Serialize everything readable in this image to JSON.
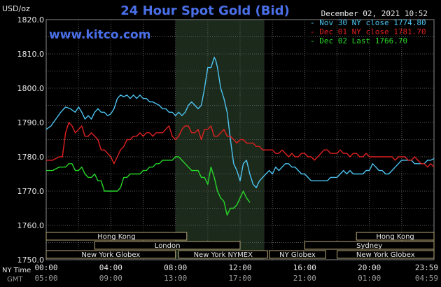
{
  "chart_data": {
    "type": "line",
    "title": "24 Hour Spot Gold (Bid)",
    "watermark": "www.kitco.com",
    "timestamp": "December 02, 2021 10:52",
    "y_unit_label": "USD/oz",
    "ylim": [
      1750,
      1820
    ],
    "y_ticks": [
      "1820.0",
      "1810.0",
      "1800.0",
      "1790.0",
      "1780.0",
      "1770.0",
      "1760.0",
      "1750.0"
    ],
    "x_tick_labels_ny": [
      "00:00",
      "04:00",
      "08:00",
      "12:00",
      "16:00",
      "20:00",
      "23:59"
    ],
    "x_tick_labels_gmt": [
      "05:00",
      "09:00",
      "13:00",
      "17:00",
      "21:00",
      "01:00",
      "04:59"
    ],
    "x_axis_row_labels": {
      "ny": "NY Time",
      "gmt": "GMT"
    },
    "grid": true,
    "legend_placement": "top-right",
    "shaded_region_hours": [
      8,
      13.5
    ],
    "series": [
      {
        "name": "Nov 30 NY close 1774.80",
        "color": "#4cc3f0",
        "points": [
          [
            0,
            1788
          ],
          [
            0.3,
            1789
          ],
          [
            0.6,
            1791
          ],
          [
            0.9,
            1793
          ],
          [
            1.2,
            1794.5
          ],
          [
            1.5,
            1794
          ],
          [
            1.8,
            1793
          ],
          [
            2.0,
            1794.5
          ],
          [
            2.2,
            1793
          ],
          [
            2.4,
            1791
          ],
          [
            2.6,
            1792
          ],
          [
            2.8,
            1791
          ],
          [
            3.0,
            1793
          ],
          [
            3.2,
            1794
          ],
          [
            3.4,
            1793
          ],
          [
            3.6,
            1793
          ],
          [
            3.8,
            1792
          ],
          [
            4.0,
            1792.5
          ],
          [
            4.2,
            1794
          ],
          [
            4.4,
            1797
          ],
          [
            4.6,
            1798
          ],
          [
            4.8,
            1797.5
          ],
          [
            5.0,
            1798
          ],
          [
            5.2,
            1797
          ],
          [
            5.4,
            1798
          ],
          [
            5.6,
            1797
          ],
          [
            5.8,
            1798
          ],
          [
            6.0,
            1797
          ],
          [
            6.2,
            1797
          ],
          [
            6.4,
            1796
          ],
          [
            6.6,
            1796
          ],
          [
            6.8,
            1795.5
          ],
          [
            7.0,
            1795
          ],
          [
            7.2,
            1794
          ],
          [
            7.4,
            1794
          ],
          [
            7.6,
            1793
          ],
          [
            7.8,
            1793
          ],
          [
            8.0,
            1792
          ],
          [
            8.2,
            1793
          ],
          [
            8.4,
            1792
          ],
          [
            8.6,
            1793
          ],
          [
            8.8,
            1795
          ],
          [
            9.0,
            1796
          ],
          [
            9.2,
            1795
          ],
          [
            9.4,
            1794
          ],
          [
            9.6,
            1795
          ],
          [
            9.8,
            1800
          ],
          [
            10.0,
            1806
          ],
          [
            10.2,
            1806
          ],
          [
            10.4,
            1809
          ],
          [
            10.5,
            1808
          ],
          [
            10.6,
            1806
          ],
          [
            10.8,
            1800
          ],
          [
            11.0,
            1797
          ],
          [
            11.2,
            1793
          ],
          [
            11.4,
            1785
          ],
          [
            11.6,
            1778
          ],
          [
            11.8,
            1776
          ],
          [
            12.0,
            1773
          ],
          [
            12.2,
            1778
          ],
          [
            12.4,
            1779
          ],
          [
            12.6,
            1775
          ],
          [
            12.8,
            1772
          ],
          [
            13.0,
            1771
          ],
          [
            13.2,
            1773
          ],
          [
            13.4,
            1774
          ],
          [
            13.6,
            1775
          ],
          [
            13.8,
            1776
          ],
          [
            14.0,
            1775
          ],
          [
            14.2,
            1777
          ],
          [
            14.4,
            1776
          ],
          [
            14.6,
            1777
          ],
          [
            14.8,
            1778
          ],
          [
            15.0,
            1778
          ],
          [
            15.2,
            1777
          ],
          [
            15.4,
            1777
          ],
          [
            15.6,
            1776
          ],
          [
            15.8,
            1775
          ],
          [
            16.0,
            1775
          ],
          [
            16.2,
            1774
          ],
          [
            16.4,
            1773
          ],
          [
            16.6,
            1773
          ],
          [
            16.8,
            1773
          ],
          [
            17.0,
            1773
          ],
          [
            17.2,
            1773
          ],
          [
            17.4,
            1773
          ],
          [
            17.6,
            1774
          ],
          [
            17.8,
            1774
          ],
          [
            18.0,
            1774
          ],
          [
            18.2,
            1775
          ],
          [
            18.4,
            1776
          ],
          [
            18.6,
            1775
          ],
          [
            18.8,
            1776
          ],
          [
            19.0,
            1775
          ],
          [
            19.2,
            1775
          ],
          [
            19.4,
            1775
          ],
          [
            19.6,
            1775
          ],
          [
            19.8,
            1776
          ],
          [
            20.0,
            1776
          ],
          [
            20.2,
            1778
          ],
          [
            20.4,
            1777
          ],
          [
            20.6,
            1776
          ],
          [
            20.8,
            1776
          ],
          [
            21.0,
            1775
          ],
          [
            21.2,
            1775
          ],
          [
            21.4,
            1776
          ],
          [
            21.6,
            1777
          ],
          [
            21.8,
            1778
          ],
          [
            22.0,
            1779
          ],
          [
            22.2,
            1779
          ],
          [
            22.4,
            1779
          ],
          [
            22.6,
            1779
          ],
          [
            22.8,
            1778
          ],
          [
            23.0,
            1778
          ],
          [
            23.2,
            1778
          ],
          [
            23.4,
            1778
          ],
          [
            23.6,
            1779
          ],
          [
            23.8,
            1779
          ],
          [
            24.0,
            1779.5
          ]
        ]
      },
      {
        "name": "Dec 01 NY close 1781.70",
        "color": "#e02020",
        "points": [
          [
            0,
            1779
          ],
          [
            0.4,
            1779
          ],
          [
            0.8,
            1780
          ],
          [
            1.0,
            1780
          ],
          [
            1.2,
            1787
          ],
          [
            1.4,
            1790
          ],
          [
            1.6,
            1789
          ],
          [
            1.8,
            1787
          ],
          [
            2.0,
            1788
          ],
          [
            2.2,
            1789
          ],
          [
            2.4,
            1786
          ],
          [
            2.6,
            1786
          ],
          [
            2.8,
            1787
          ],
          [
            3.0,
            1786
          ],
          [
            3.2,
            1785
          ],
          [
            3.4,
            1782
          ],
          [
            3.6,
            1782
          ],
          [
            3.8,
            1781
          ],
          [
            4.0,
            1780
          ],
          [
            4.2,
            1778
          ],
          [
            4.4,
            1780
          ],
          [
            4.6,
            1782
          ],
          [
            4.8,
            1783
          ],
          [
            5.0,
            1785
          ],
          [
            5.2,
            1785
          ],
          [
            5.4,
            1786
          ],
          [
            5.6,
            1786
          ],
          [
            5.8,
            1787
          ],
          [
            6.0,
            1786
          ],
          [
            6.2,
            1787
          ],
          [
            6.4,
            1787
          ],
          [
            6.6,
            1786
          ],
          [
            6.8,
            1787
          ],
          [
            7.0,
            1787
          ],
          [
            7.2,
            1787
          ],
          [
            7.4,
            1788
          ],
          [
            7.6,
            1789
          ],
          [
            7.8,
            1786
          ],
          [
            8.0,
            1785
          ],
          [
            8.2,
            1786
          ],
          [
            8.4,
            1788
          ],
          [
            8.6,
            1789
          ],
          [
            8.8,
            1789
          ],
          [
            9.0,
            1787
          ],
          [
            9.2,
            1787
          ],
          [
            9.4,
            1788
          ],
          [
            9.6,
            1785
          ],
          [
            9.8,
            1788
          ],
          [
            10.0,
            1788
          ],
          [
            10.2,
            1789
          ],
          [
            10.4,
            1786
          ],
          [
            10.6,
            1786
          ],
          [
            10.8,
            1787
          ],
          [
            11.0,
            1788
          ],
          [
            11.2,
            1786
          ],
          [
            11.4,
            1786
          ],
          [
            11.6,
            1785
          ],
          [
            11.8,
            1784
          ],
          [
            12.0,
            1785
          ],
          [
            12.2,
            1785
          ],
          [
            12.4,
            1784
          ],
          [
            12.6,
            1784
          ],
          [
            12.8,
            1784
          ],
          [
            13.0,
            1783
          ],
          [
            13.2,
            1783
          ],
          [
            13.4,
            1782
          ],
          [
            13.6,
            1782
          ],
          [
            13.8,
            1782
          ],
          [
            14.0,
            1782
          ],
          [
            14.2,
            1781
          ],
          [
            14.4,
            1781
          ],
          [
            14.6,
            1782
          ],
          [
            14.8,
            1781
          ],
          [
            15.0,
            1780
          ],
          [
            15.2,
            1781
          ],
          [
            15.4,
            1780
          ],
          [
            15.6,
            1780
          ],
          [
            15.8,
            1781
          ],
          [
            16.0,
            1781
          ],
          [
            16.2,
            1780
          ],
          [
            16.4,
            1780
          ],
          [
            16.6,
            1779
          ],
          [
            16.8,
            1780
          ],
          [
            17.0,
            1781
          ],
          [
            17.2,
            1782
          ],
          [
            17.4,
            1782
          ],
          [
            17.6,
            1781
          ],
          [
            17.8,
            1781
          ],
          [
            18.0,
            1781
          ],
          [
            18.2,
            1782
          ],
          [
            18.4,
            1781
          ],
          [
            18.6,
            1781
          ],
          [
            18.8,
            1780
          ],
          [
            19.0,
            1781
          ],
          [
            19.2,
            1781
          ],
          [
            19.4,
            1780
          ],
          [
            19.6,
            1780
          ],
          [
            19.8,
            1781
          ],
          [
            20.0,
            1780
          ],
          [
            20.2,
            1780
          ],
          [
            20.4,
            1780
          ],
          [
            20.6,
            1780
          ],
          [
            20.8,
            1780
          ],
          [
            21.0,
            1780
          ],
          [
            21.2,
            1780
          ],
          [
            21.4,
            1780
          ],
          [
            21.6,
            1779
          ],
          [
            21.8,
            1780
          ],
          [
            22.0,
            1780
          ],
          [
            22.2,
            1780
          ],
          [
            22.4,
            1779
          ],
          [
            22.6,
            1779
          ],
          [
            22.8,
            1780
          ],
          [
            23.0,
            1779
          ],
          [
            23.2,
            1778
          ],
          [
            23.4,
            1778
          ],
          [
            23.6,
            1777
          ],
          [
            23.8,
            1778
          ],
          [
            24.0,
            1777
          ]
        ]
      },
      {
        "name": "Dec 02 Last 1766.70",
        "color": "#28d828",
        "points": [
          [
            0,
            1776
          ],
          [
            0.4,
            1776
          ],
          [
            0.8,
            1777
          ],
          [
            1.0,
            1777
          ],
          [
            1.2,
            1777
          ],
          [
            1.4,
            1778
          ],
          [
            1.6,
            1778
          ],
          [
            1.8,
            1776
          ],
          [
            2.0,
            1776
          ],
          [
            2.2,
            1777
          ],
          [
            2.4,
            1775
          ],
          [
            2.6,
            1774
          ],
          [
            2.8,
            1774
          ],
          [
            3.0,
            1775
          ],
          [
            3.2,
            1773
          ],
          [
            3.4,
            1773
          ],
          [
            3.6,
            1770
          ],
          [
            3.8,
            1770
          ],
          [
            4.0,
            1770
          ],
          [
            4.2,
            1770
          ],
          [
            4.4,
            1770
          ],
          [
            4.6,
            1771
          ],
          [
            4.8,
            1774
          ],
          [
            5.0,
            1774
          ],
          [
            5.2,
            1775
          ],
          [
            5.4,
            1775
          ],
          [
            5.6,
            1775
          ],
          [
            5.8,
            1775
          ],
          [
            6.0,
            1776
          ],
          [
            6.2,
            1776
          ],
          [
            6.4,
            1777
          ],
          [
            6.6,
            1777
          ],
          [
            6.8,
            1778
          ],
          [
            7.0,
            1778
          ],
          [
            7.2,
            1779
          ],
          [
            7.4,
            1779
          ],
          [
            7.6,
            1779
          ],
          [
            7.8,
            1779
          ],
          [
            8.0,
            1780
          ],
          [
            8.2,
            1780
          ],
          [
            8.4,
            1779
          ],
          [
            8.6,
            1778
          ],
          [
            8.8,
            1777
          ],
          [
            9.0,
            1776
          ],
          [
            9.2,
            1776
          ],
          [
            9.4,
            1776
          ],
          [
            9.6,
            1774
          ],
          [
            9.8,
            1774
          ],
          [
            10.0,
            1772
          ],
          [
            10.2,
            1777
          ],
          [
            10.4,
            1774
          ],
          [
            10.6,
            1770
          ],
          [
            10.8,
            1768
          ],
          [
            11.0,
            1767
          ],
          [
            11.2,
            1763
          ],
          [
            11.4,
            1765
          ],
          [
            11.6,
            1765
          ],
          [
            11.8,
            1766
          ],
          [
            12.0,
            1768
          ],
          [
            12.2,
            1770
          ],
          [
            12.4,
            1768
          ],
          [
            12.6,
            1766.7
          ]
        ]
      }
    ]
  },
  "sessions": [
    {
      "name": "Hong Kong",
      "row": 1,
      "start": 0,
      "end": 8.7
    },
    {
      "name": "Hong Kong",
      "row": 1,
      "start": 19.2,
      "end": 24
    },
    {
      "name": "London",
      "row": 2,
      "start": 3,
      "end": 12
    },
    {
      "name": "Sydney",
      "row": 2,
      "start": 16,
      "end": 24
    },
    {
      "name": "New York Globex",
      "row": 3,
      "start": 0,
      "end": 8
    },
    {
      "name": "New York NYMEX",
      "row": 3,
      "start": 8.2,
      "end": 13.7
    },
    {
      "name": "NY Globex",
      "row": 3,
      "start": 13.8,
      "end": 17.3
    },
    {
      "name": "New York Globex",
      "row": 3,
      "start": 18,
      "end": 24
    }
  ]
}
